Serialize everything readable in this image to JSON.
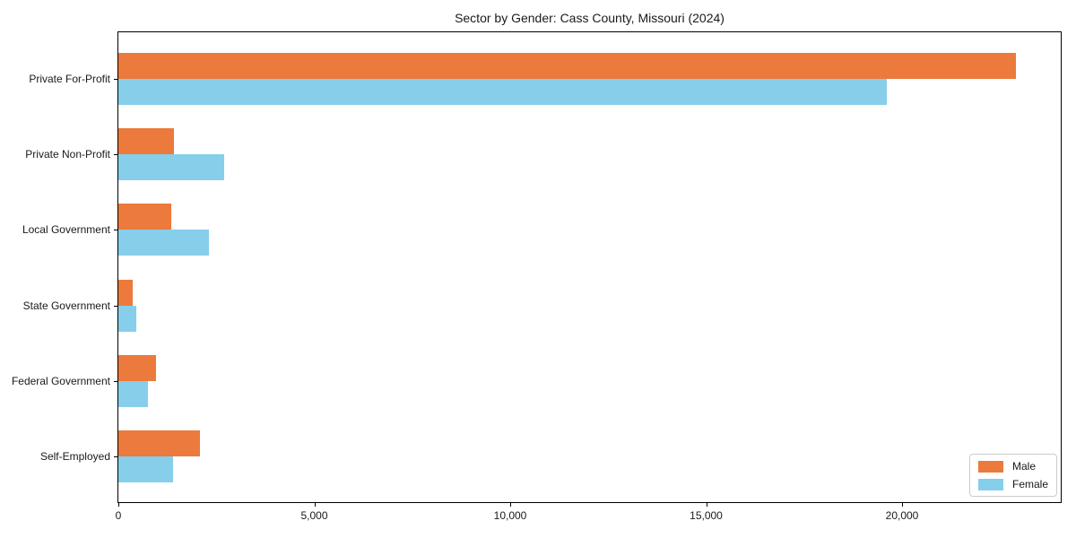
{
  "chart_data": {
    "type": "bar",
    "orientation": "horizontal",
    "title": "Sector by Gender: Cass County, Missouri (2024)",
    "categories": [
      "Private For-Profit",
      "Private Non-Profit",
      "Local Government",
      "State Government",
      "Federal Government",
      "Self-Employed"
    ],
    "series": [
      {
        "name": "Male",
        "color": "#EB7A3C",
        "values": [
          22900,
          1410,
          1360,
          370,
          970,
          2080
        ]
      },
      {
        "name": "Female",
        "color": "#87CEEB",
        "values": [
          19600,
          2700,
          2320,
          460,
          750,
          1390
        ]
      }
    ],
    "xlabel": "",
    "ylabel": "",
    "xlim": [
      0,
      24050
    ],
    "xticks": [
      {
        "value": 0,
        "label": "0"
      },
      {
        "value": 5000,
        "label": "5,000"
      },
      {
        "value": 10000,
        "label": "10,000"
      },
      {
        "value": 15000,
        "label": "15,000"
      },
      {
        "value": 20000,
        "label": "20,000"
      }
    ],
    "grid": false,
    "legend": {
      "position": "lower right",
      "entries": [
        "Male",
        "Female"
      ]
    },
    "axis_color": "#000000",
    "text_color": "#1a1a1a",
    "legend_border_color": "#cccccc"
  }
}
